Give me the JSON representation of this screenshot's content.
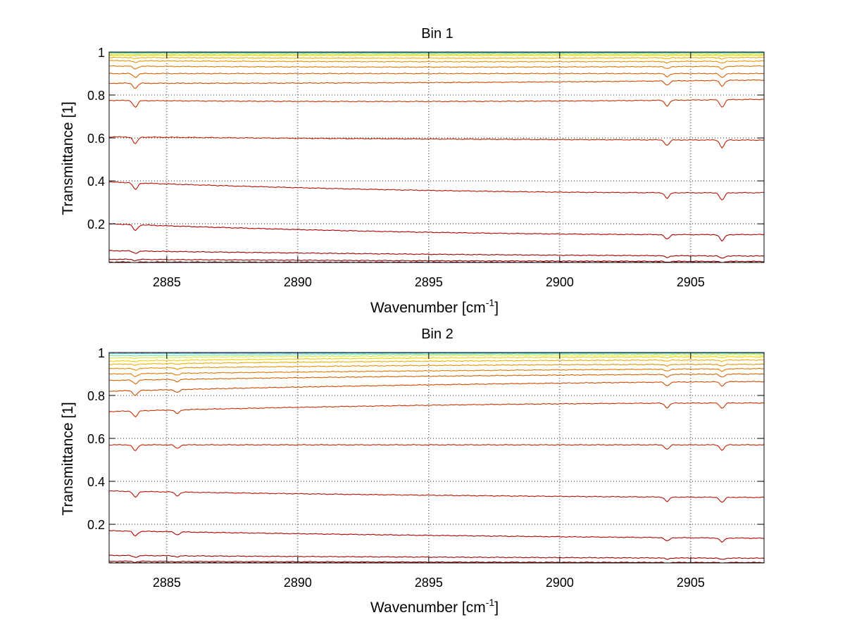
{
  "chart_data": [
    {
      "type": "line",
      "title": "Bin 1",
      "xlabel_main": "Wavenumber [cm",
      "xlabel_sup": "-1",
      "xlabel_end": "]",
      "ylabel": "Transmittance [1]",
      "xlim": [
        2882.8,
        2907.8
      ],
      "ylim": [
        0.02,
        1.0
      ],
      "xticks": [
        2885,
        2890,
        2895,
        2900,
        2905
      ],
      "yticks": [
        0.2,
        0.4,
        0.6,
        0.8,
        1
      ],
      "xtick_labels": [
        "2885",
        "2890",
        "2895",
        "2900",
        "2905"
      ],
      "ytick_labels": [
        "0.2",
        "0.4",
        "0.6",
        "0.8",
        "1"
      ],
      "grid": true,
      "absorption_lines": [
        {
          "x": 2883.8,
          "relative_strength": 0.9
        },
        {
          "x": 2904.1,
          "relative_strength": 0.75
        },
        {
          "x": 2906.2,
          "relative_strength": 1.0
        }
      ],
      "series": [
        {
          "color": "#2050a8",
          "values": [
            1.0,
            0.999,
            0.999
          ]
        },
        {
          "color": "#3fc0e0",
          "values": [
            0.998,
            0.997,
            0.998
          ]
        },
        {
          "color": "#7fe0a0",
          "values": [
            0.995,
            0.994,
            0.995
          ]
        },
        {
          "color": "#d8e840",
          "values": [
            0.99,
            0.989,
            0.99
          ]
        },
        {
          "color": "#f0d000",
          "values": [
            0.985,
            0.984,
            0.985
          ]
        },
        {
          "color": "#f0b000",
          "values": [
            0.975,
            0.972,
            0.975
          ]
        },
        {
          "color": "#e89000",
          "values": [
            0.96,
            0.955,
            0.958
          ]
        },
        {
          "color": "#e07800",
          "values": [
            0.935,
            0.93,
            0.935
          ]
        },
        {
          "color": "#d86000",
          "values": [
            0.9,
            0.9,
            0.9
          ]
        },
        {
          "color": "#d04800",
          "values": [
            0.855,
            0.858,
            0.87
          ]
        },
        {
          "color": "#c83000",
          "values": [
            0.775,
            0.77,
            0.78
          ]
        },
        {
          "color": "#c02000",
          "values": [
            0.605,
            0.595,
            0.59
          ]
        },
        {
          "color": "#b81000",
          "values": [
            0.395,
            0.355,
            0.345
          ]
        },
        {
          "color": "#b00000",
          "values": [
            0.2,
            0.16,
            0.15
          ]
        },
        {
          "color": "#a00000",
          "values": [
            0.075,
            0.058,
            0.05
          ]
        },
        {
          "color": "#900000",
          "values": [
            0.035,
            0.028,
            0.025
          ]
        },
        {
          "color": "#800000",
          "values": [
            0.022,
            0.021,
            0.02
          ]
        }
      ]
    },
    {
      "type": "line",
      "title": "Bin 2",
      "xlabel_main": "Wavenumber [cm",
      "xlabel_sup": "-1",
      "xlabel_end": "]",
      "ylabel": "Transmittance [1]",
      "xlim": [
        2882.8,
        2907.8
      ],
      "ylim": [
        0.02,
        1.0
      ],
      "xticks": [
        2885,
        2890,
        2895,
        2900,
        2905
      ],
      "yticks": [
        0.2,
        0.4,
        0.6,
        0.8,
        1
      ],
      "xtick_labels": [
        "2885",
        "2890",
        "2895",
        "2900",
        "2905"
      ],
      "ytick_labels": [
        "0.2",
        "0.4",
        "0.6",
        "0.8",
        "1"
      ],
      "grid": true,
      "absorption_lines": [
        {
          "x": 2883.8,
          "relative_strength": 0.8
        },
        {
          "x": 2885.4,
          "relative_strength": 0.5
        },
        {
          "x": 2904.1,
          "relative_strength": 0.6
        },
        {
          "x": 2906.2,
          "relative_strength": 0.7
        }
      ],
      "series": [
        {
          "color": "#2050a8",
          "values": [
            1.0,
            0.999,
            0.999
          ]
        },
        {
          "color": "#3fc0e0",
          "values": [
            0.995,
            0.997,
            0.998
          ]
        },
        {
          "color": "#7fe0a0",
          "values": [
            0.985,
            0.992,
            0.995
          ]
        },
        {
          "color": "#d8e840",
          "values": [
            0.975,
            0.985,
            0.99
          ]
        },
        {
          "color": "#f0d000",
          "values": [
            0.96,
            0.975,
            0.98
          ]
        },
        {
          "color": "#f0b000",
          "values": [
            0.945,
            0.96,
            0.965
          ]
        },
        {
          "color": "#e89000",
          "values": [
            0.925,
            0.94,
            0.945
          ]
        },
        {
          "color": "#e07800",
          "values": [
            0.9,
            0.915,
            0.925
          ]
        },
        {
          "color": "#d86000",
          "values": [
            0.87,
            0.89,
            0.9
          ]
        },
        {
          "color": "#d04800",
          "values": [
            0.82,
            0.85,
            0.865
          ]
        },
        {
          "color": "#c83000",
          "values": [
            0.725,
            0.755,
            0.765
          ]
        },
        {
          "color": "#c02000",
          "values": [
            0.57,
            0.57,
            0.57
          ]
        },
        {
          "color": "#b81000",
          "values": [
            0.355,
            0.335,
            0.325
          ]
        },
        {
          "color": "#b00000",
          "values": [
            0.17,
            0.148,
            0.135
          ]
        },
        {
          "color": "#a00000",
          "values": [
            0.055,
            0.047,
            0.042
          ]
        },
        {
          "color": "#900000",
          "values": [
            0.028,
            0.024,
            0.022
          ]
        },
        {
          "color": "#800000",
          "values": [
            0.021,
            0.02,
            0.02
          ]
        }
      ]
    }
  ]
}
